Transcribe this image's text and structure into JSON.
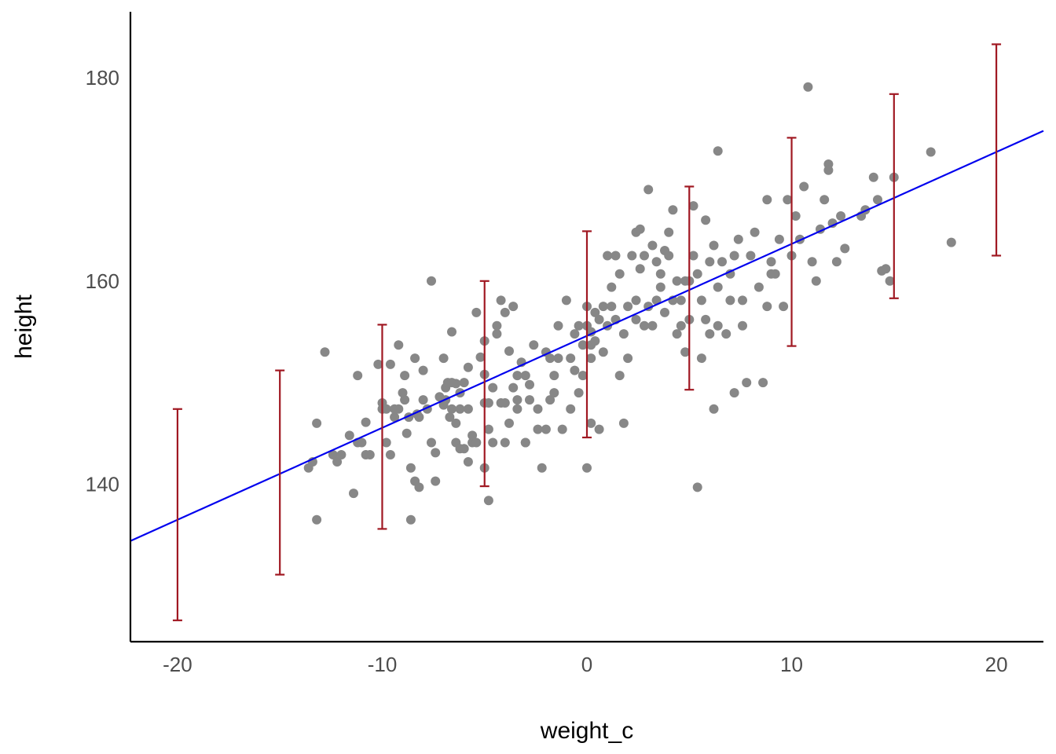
{
  "chart_data": {
    "type": "scatter",
    "title": "",
    "xlabel": "weight_c",
    "ylabel": "height",
    "xlim": [
      -22.3,
      22.3
    ],
    "ylim": [
      124.5,
      186.5
    ],
    "x_ticks": [
      -20,
      -10,
      0,
      10,
      20
    ],
    "x_tick_labels": [
      "-20",
      "-10",
      "0",
      "10",
      "20"
    ],
    "y_ticks": [
      140,
      160,
      180
    ],
    "y_tick_labels": [
      "140",
      "160",
      "180"
    ],
    "grid": false,
    "legend": "none",
    "colors": {
      "points": "#878787",
      "regression_line": "#0000ee",
      "interval_bars": "#a01822",
      "axis": "#000000"
    },
    "regression_line": {
      "intercept": 154.6,
      "slope": 0.905
    },
    "prediction_intervals": [
      {
        "x": -20,
        "lower": 126.6,
        "upper": 147.4
      },
      {
        "x": -15,
        "lower": 131.1,
        "upper": 151.2
      },
      {
        "x": -10,
        "lower": 135.6,
        "upper": 155.7
      },
      {
        "x": -5,
        "lower": 139.8,
        "upper": 160.0
      },
      {
        "x": 0,
        "lower": 144.6,
        "upper": 164.9
      },
      {
        "x": 5,
        "lower": 149.3,
        "upper": 169.3
      },
      {
        "x": 10,
        "lower": 153.6,
        "upper": 174.1
      },
      {
        "x": 15,
        "lower": 158.3,
        "upper": 178.4
      },
      {
        "x": 20,
        "lower": 162.5,
        "upper": 183.3
      }
    ],
    "points": [
      [
        -13.6,
        141.6
      ],
      [
        -13.4,
        142.2
      ],
      [
        -13.2,
        146.0
      ],
      [
        -13.2,
        136.5
      ],
      [
        -12.8,
        153.0
      ],
      [
        -12.4,
        142.9
      ],
      [
        -12.2,
        142.2
      ],
      [
        -12.0,
        142.9
      ],
      [
        -11.6,
        144.8
      ],
      [
        -11.4,
        139.1
      ],
      [
        -11.2,
        144.1
      ],
      [
        -11.2,
        150.7
      ],
      [
        -11.0,
        144.1
      ],
      [
        -10.8,
        146.1
      ],
      [
        -10.8,
        142.9
      ],
      [
        -10.6,
        142.9
      ],
      [
        -10.2,
        151.8
      ],
      [
        -10.0,
        148.0
      ],
      [
        -10.0,
        147.4
      ],
      [
        -9.8,
        144.1
      ],
      [
        -9.8,
        147.4
      ],
      [
        -9.6,
        151.8
      ],
      [
        -9.6,
        142.9
      ],
      [
        -9.4,
        146.6
      ],
      [
        -9.4,
        147.4
      ],
      [
        -9.2,
        153.7
      ],
      [
        -9.2,
        147.4
      ],
      [
        -9.0,
        149.0
      ],
      [
        -8.9,
        148.3
      ],
      [
        -8.9,
        150.7
      ],
      [
        -8.8,
        145.0
      ],
      [
        -8.7,
        146.6
      ],
      [
        -8.6,
        141.6
      ],
      [
        -8.6,
        136.5
      ],
      [
        -8.4,
        140.3
      ],
      [
        -8.4,
        152.4
      ],
      [
        -8.3,
        146.9
      ],
      [
        -8.2,
        139.7
      ],
      [
        -8.2,
        146.6
      ],
      [
        -8.0,
        151.2
      ],
      [
        -8.0,
        148.3
      ],
      [
        -7.8,
        147.4
      ],
      [
        -7.6,
        160.0
      ],
      [
        -7.6,
        144.1
      ],
      [
        -7.4,
        140.3
      ],
      [
        -7.4,
        143.1
      ],
      [
        -7.2,
        148.6
      ],
      [
        -7.0,
        147.8
      ],
      [
        -7.0,
        152.4
      ],
      [
        -6.9,
        149.5
      ],
      [
        -6.9,
        148.3
      ],
      [
        -6.8,
        150.0
      ],
      [
        -6.7,
        146.6
      ],
      [
        -6.6,
        155.0
      ],
      [
        -6.6,
        150.0
      ],
      [
        -6.6,
        147.4
      ],
      [
        -6.4,
        149.9
      ],
      [
        -6.4,
        146.0
      ],
      [
        -6.4,
        144.1
      ],
      [
        -6.2,
        143.5
      ],
      [
        -6.2,
        147.4
      ],
      [
        -6.2,
        149.0
      ],
      [
        -6.0,
        150.0
      ],
      [
        -6.0,
        143.5
      ],
      [
        -5.8,
        151.5
      ],
      [
        -5.8,
        142.2
      ],
      [
        -5.8,
        147.4
      ],
      [
        -5.6,
        144.1
      ],
      [
        -5.6,
        144.8
      ],
      [
        -5.4,
        156.9
      ],
      [
        -5.4,
        144.1
      ],
      [
        -5.2,
        152.5
      ],
      [
        -5.0,
        150.8
      ],
      [
        -5.0,
        148.0
      ],
      [
        -5.0,
        141.6
      ],
      [
        -5.0,
        154.1
      ],
      [
        -4.8,
        148.0
      ],
      [
        -4.8,
        145.4
      ],
      [
        -4.8,
        138.4
      ],
      [
        -4.6,
        149.5
      ],
      [
        -4.6,
        144.1
      ],
      [
        -4.4,
        154.8
      ],
      [
        -4.4,
        155.6
      ],
      [
        -4.2,
        148.0
      ],
      [
        -4.2,
        158.1
      ],
      [
        -4.0,
        144.1
      ],
      [
        -4.0,
        156.9
      ],
      [
        -4.0,
        148.0
      ],
      [
        -3.8,
        146.0
      ],
      [
        -3.8,
        153.1
      ],
      [
        -3.6,
        157.5
      ],
      [
        -3.6,
        149.5
      ],
      [
        -3.4,
        150.7
      ],
      [
        -3.4,
        148.3
      ],
      [
        -3.4,
        147.4
      ],
      [
        -3.2,
        152.0
      ],
      [
        -3.0,
        144.1
      ],
      [
        -3.0,
        144.1
      ],
      [
        -3.0,
        150.7
      ],
      [
        -2.8,
        148.3
      ],
      [
        -2.8,
        149.8
      ],
      [
        -2.6,
        153.7
      ],
      [
        -2.4,
        147.4
      ],
      [
        -2.4,
        145.4
      ],
      [
        -2.2,
        141.6
      ],
      [
        -2.0,
        145.4
      ],
      [
        -2.0,
        153.0
      ],
      [
        -1.8,
        148.3
      ],
      [
        -1.8,
        152.4
      ],
      [
        -1.6,
        149.0
      ],
      [
        -1.6,
        150.7
      ],
      [
        -1.4,
        155.6
      ],
      [
        -1.4,
        152.4
      ],
      [
        -1.2,
        145.4
      ],
      [
        -1.0,
        158.1
      ],
      [
        -0.8,
        147.4
      ],
      [
        -0.8,
        152.4
      ],
      [
        -0.6,
        151.2
      ],
      [
        -0.6,
        154.8
      ],
      [
        -0.4,
        155.6
      ],
      [
        -0.4,
        149.0
      ],
      [
        -0.2,
        150.7
      ],
      [
        -0.2,
        153.7
      ],
      [
        0.0,
        157.5
      ],
      [
        0.0,
        141.6
      ],
      [
        0.0,
        155.6
      ],
      [
        0.2,
        153.7
      ],
      [
        0.2,
        152.4
      ],
      [
        0.2,
        155.0
      ],
      [
        0.2,
        146.0
      ],
      [
        0.4,
        156.9
      ],
      [
        0.4,
        154.1
      ],
      [
        0.6,
        156.2
      ],
      [
        0.6,
        145.4
      ],
      [
        0.8,
        157.5
      ],
      [
        0.8,
        153.0
      ],
      [
        1.0,
        162.5
      ],
      [
        1.0,
        155.6
      ],
      [
        1.2,
        157.5
      ],
      [
        1.2,
        159.4
      ],
      [
        1.4,
        156.2
      ],
      [
        1.4,
        162.5
      ],
      [
        1.6,
        160.7
      ],
      [
        1.6,
        150.7
      ],
      [
        1.8,
        154.8
      ],
      [
        1.8,
        146.0
      ],
      [
        2.0,
        157.5
      ],
      [
        2.0,
        152.4
      ],
      [
        2.2,
        162.5
      ],
      [
        2.4,
        164.8
      ],
      [
        2.4,
        156.2
      ],
      [
        2.4,
        158.1
      ],
      [
        2.6,
        165.1
      ],
      [
        2.6,
        161.2
      ],
      [
        2.8,
        162.5
      ],
      [
        2.8,
        155.6
      ],
      [
        3.0,
        169.0
      ],
      [
        3.0,
        157.5
      ],
      [
        3.2,
        163.5
      ],
      [
        3.2,
        155.6
      ],
      [
        3.4,
        161.9
      ],
      [
        3.4,
        158.1
      ],
      [
        3.6,
        159.4
      ],
      [
        3.6,
        160.7
      ],
      [
        3.8,
        163.0
      ],
      [
        3.8,
        156.9
      ],
      [
        4.0,
        164.8
      ],
      [
        4.0,
        162.5
      ],
      [
        4.2,
        167.0
      ],
      [
        4.2,
        158.1
      ],
      [
        4.4,
        160.0
      ],
      [
        4.4,
        154.8
      ],
      [
        4.6,
        155.6
      ],
      [
        4.6,
        158.1
      ],
      [
        4.8,
        160.0
      ],
      [
        4.8,
        153.0
      ],
      [
        5.0,
        160.0
      ],
      [
        5.0,
        156.2
      ],
      [
        5.2,
        167.4
      ],
      [
        5.2,
        162.5
      ],
      [
        5.4,
        160.7
      ],
      [
        5.4,
        139.7
      ],
      [
        5.6,
        158.1
      ],
      [
        5.6,
        152.4
      ],
      [
        5.8,
        156.2
      ],
      [
        5.8,
        166.0
      ],
      [
        6.0,
        161.9
      ],
      [
        6.0,
        154.8
      ],
      [
        6.2,
        163.5
      ],
      [
        6.2,
        147.4
      ],
      [
        6.4,
        159.4
      ],
      [
        6.4,
        155.6
      ],
      [
        6.6,
        161.9
      ],
      [
        6.8,
        154.8
      ],
      [
        7.0,
        160.7
      ],
      [
        7.0,
        158.1
      ],
      [
        7.2,
        162.5
      ],
      [
        7.2,
        149.0
      ],
      [
        7.4,
        164.1
      ],
      [
        7.6,
        158.1
      ],
      [
        7.6,
        155.6
      ],
      [
        7.8,
        150.0
      ],
      [
        8.0,
        162.5
      ],
      [
        8.2,
        164.8
      ],
      [
        8.4,
        159.4
      ],
      [
        8.6,
        150.0
      ],
      [
        8.8,
        168.0
      ],
      [
        8.8,
        157.5
      ],
      [
        9.0,
        161.9
      ],
      [
        9.2,
        160.7
      ],
      [
        9.4,
        164.1
      ],
      [
        9.6,
        157.5
      ],
      [
        9.8,
        168.0
      ],
      [
        10.0,
        162.5
      ],
      [
        10.2,
        166.4
      ],
      [
        10.4,
        164.1
      ],
      [
        10.6,
        169.3
      ],
      [
        10.8,
        179.1
      ],
      [
        11.0,
        161.9
      ],
      [
        11.2,
        160.0
      ],
      [
        11.4,
        165.1
      ],
      [
        11.6,
        168.0
      ],
      [
        11.8,
        171.5
      ],
      [
        11.8,
        170.9
      ],
      [
        12.0,
        165.7
      ],
      [
        12.2,
        161.9
      ],
      [
        12.4,
        166.4
      ],
      [
        13.4,
        166.4
      ],
      [
        13.6,
        167.0
      ],
      [
        14.0,
        170.2
      ],
      [
        14.2,
        168.0
      ],
      [
        14.4,
        161.0
      ],
      [
        14.6,
        161.2
      ],
      [
        14.8,
        160.0
      ],
      [
        15.0,
        170.2
      ],
      [
        16.8,
        172.7
      ],
      [
        17.8,
        163.8
      ],
      [
        12.6,
        163.2
      ],
      [
        9.0,
        160.7
      ],
      [
        6.4,
        172.8
      ]
    ]
  }
}
